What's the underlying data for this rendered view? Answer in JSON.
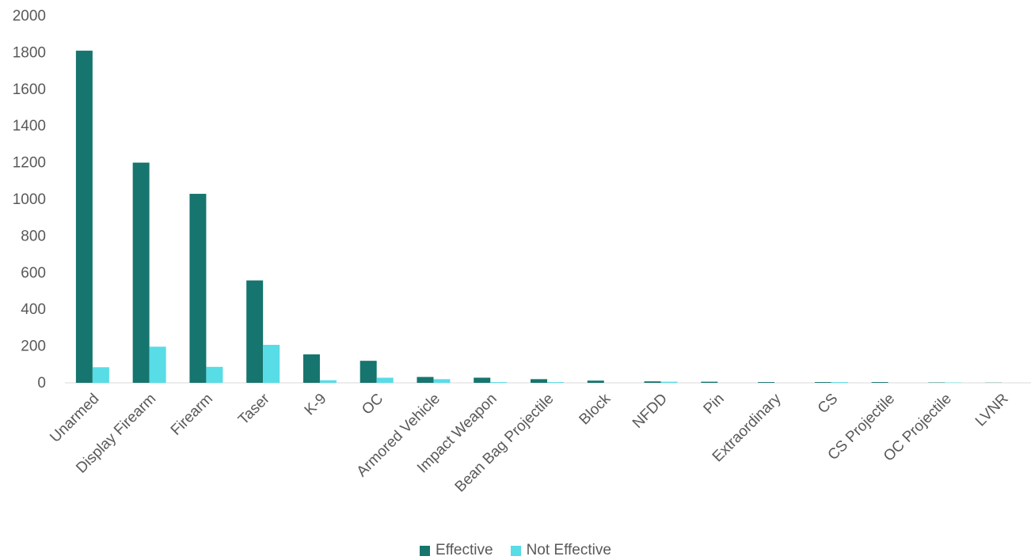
{
  "chart_data": {
    "type": "bar",
    "categories": [
      "Unarmed",
      "Display Firearm",
      "Firearm",
      "Taser",
      "K-9",
      "OC",
      "Armored Vehicle",
      "Impact Weapon",
      "Bean Bag Projectile",
      "Block",
      "NFDD",
      "Pin",
      "Extraordinary",
      "CS",
      "CS Projectile",
      "OC Projectile",
      "LVNR"
    ],
    "series": [
      {
        "name": "Effective",
        "color": "#16756E",
        "values": [
          1810,
          1200,
          1030,
          558,
          155,
          120,
          32,
          28,
          20,
          12,
          8,
          6,
          4,
          4,
          4,
          2,
          1
        ]
      },
      {
        "name": "Not Effective",
        "color": "#58DCE6",
        "values": [
          85,
          197,
          87,
          207,
          14,
          28,
          20,
          4,
          4,
          0,
          6,
          0,
          0,
          4,
          0,
          2,
          0
        ]
      }
    ],
    "ylim": [
      0,
      2000
    ],
    "yticks": [
      0,
      200,
      400,
      600,
      800,
      1000,
      1200,
      1400,
      1600,
      1800,
      2000
    ],
    "grid": false,
    "legend_position": "bottom"
  }
}
